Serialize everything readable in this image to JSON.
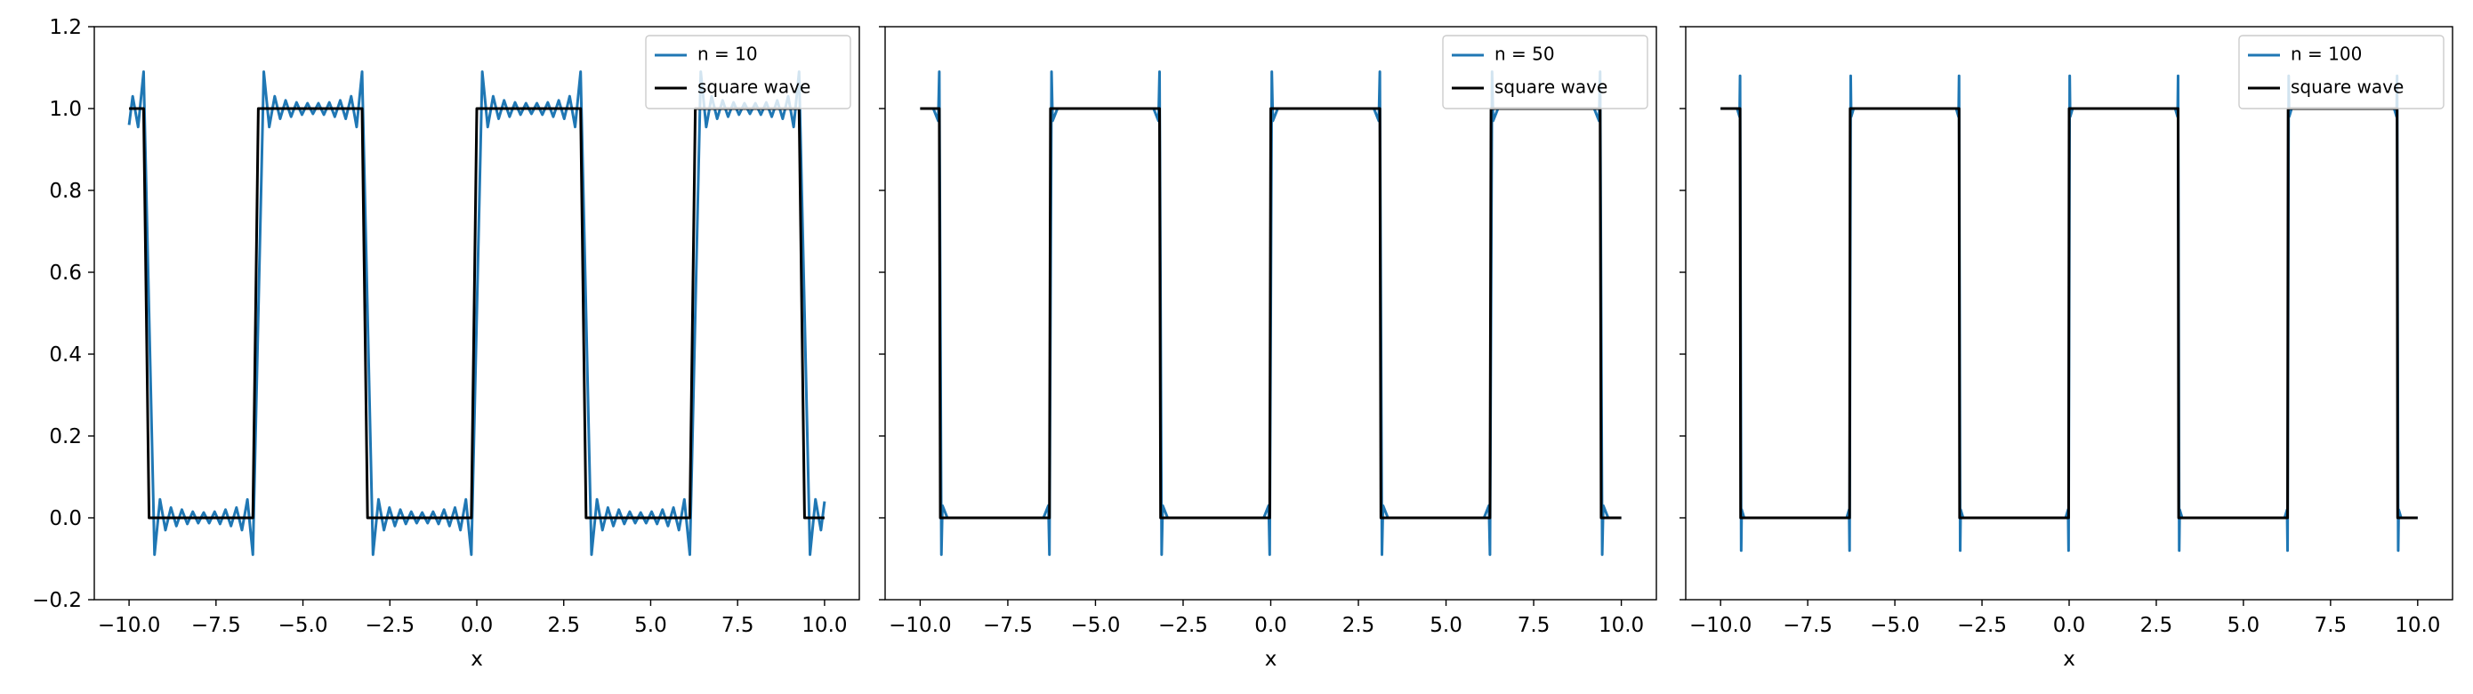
{
  "chart_data": [
    {
      "type": "line",
      "xlabel": "x",
      "x": [
        -10,
        -9.896,
        -9.739,
        -9.582,
        -9.425,
        -9.268,
        -9.111,
        -8.954,
        -8.796,
        -8.639,
        -8.482,
        -8.325,
        -8.168,
        -8.011,
        -7.854,
        -7.697,
        -7.54,
        -7.383,
        -7.226,
        -7.069,
        -6.912,
        -6.754,
        -6.597,
        -6.44,
        -6.283,
        -6.126,
        -5.969,
        -5.812,
        -5.655,
        -5.498,
        -5.341,
        -5.184,
        -5.027,
        -4.869,
        -4.712,
        -4.555,
        -4.398,
        -4.241,
        -4.084,
        -3.927,
        -3.77,
        -3.613,
        -3.456,
        -3.299,
        -3.142,
        -2.985,
        -2.827,
        -2.67,
        -2.513,
        -2.356,
        -2.199,
        -2.042,
        -1.885,
        -1.728,
        -1.571,
        -1.414,
        -1.257,
        -1.1,
        -0.942,
        -0.785,
        -0.628,
        -0.471,
        -0.314,
        -0.157,
        0,
        0.157,
        0.314,
        0.471,
        0.628,
        0.785,
        0.942,
        1.1,
        1.257,
        1.414,
        1.571,
        1.728,
        1.885,
        2.042,
        2.199,
        2.356,
        2.513,
        2.67,
        2.827,
        2.985,
        3.142,
        3.299,
        3.456,
        3.613,
        3.77,
        3.927,
        4.084,
        4.241,
        4.398,
        4.555,
        4.712,
        4.869,
        5.027,
        5.184,
        5.341,
        5.498,
        5.655,
        5.812,
        5.969,
        6.126,
        6.283,
        6.44,
        6.597,
        6.754,
        6.912,
        7.069,
        7.226,
        7.383,
        7.54,
        7.697,
        7.854,
        8.011,
        8.168,
        8.325,
        8.482,
        8.639,
        8.796,
        8.954,
        9.111,
        9.268,
        9.425,
        9.582,
        9.739,
        9.896,
        10
      ],
      "series": [
        {
          "name": "n = 10",
          "color": "#1f77b4",
          "values": [
            0.96,
            1.03,
            0.955,
            1.09,
            0.5,
            -0.09,
            0.045,
            -0.03,
            0.025,
            -0.02,
            0.02,
            -0.015,
            0.015,
            -0.013,
            0.013,
            -0.013,
            0.015,
            -0.015,
            0.02,
            -0.02,
            0.025,
            -0.03,
            0.045,
            -0.09,
            0.5,
            1.09,
            0.955,
            1.03,
            0.975,
            1.02,
            0.98,
            1.015,
            0.985,
            1.013,
            0.987,
            1.013,
            0.985,
            1.015,
            0.98,
            1.02,
            0.975,
            1.03,
            0.955,
            1.09,
            0.5,
            -0.09,
            0.045,
            -0.03,
            0.025,
            -0.02,
            0.02,
            -0.015,
            0.015,
            -0.013,
            0.013,
            -0.013,
            0.015,
            -0.015,
            0.02,
            -0.02,
            0.025,
            -0.03,
            0.045,
            -0.09,
            0.5,
            1.09,
            0.955,
            1.03,
            0.975,
            1.02,
            0.98,
            1.015,
            0.985,
            1.013,
            0.987,
            1.013,
            0.985,
            1.015,
            0.98,
            1.02,
            0.975,
            1.03,
            0.955,
            1.09,
            0.5,
            -0.09,
            0.045,
            -0.03,
            0.025,
            -0.02,
            0.02,
            -0.015,
            0.015,
            -0.013,
            0.013,
            -0.013,
            0.015,
            -0.015,
            0.02,
            -0.02,
            0.025,
            -0.03,
            0.045,
            -0.09,
            0.5,
            1.09,
            0.955,
            1.03,
            0.975,
            1.02,
            0.98,
            1.015,
            0.985,
            1.013,
            0.987,
            1.013,
            0.985,
            1.015,
            0.98,
            1.02,
            0.975,
            1.03,
            0.955,
            1.09,
            0.5,
            -0.09,
            0.045,
            -0.03,
            0.04
          ]
        },
        {
          "name": "square wave",
          "color": "#000000",
          "values": [
            1,
            1,
            1,
            1,
            0,
            0,
            0,
            0,
            0,
            0,
            0,
            0,
            0,
            0,
            0,
            0,
            0,
            0,
            0,
            0,
            0,
            0,
            0,
            0,
            1,
            1,
            1,
            1,
            1,
            1,
            1,
            1,
            1,
            1,
            1,
            1,
            1,
            1,
            1,
            1,
            1,
            1,
            1,
            1,
            0,
            0,
            0,
            0,
            0,
            0,
            0,
            0,
            0,
            0,
            0,
            0,
            0,
            0,
            0,
            0,
            0,
            0,
            0,
            0,
            1,
            1,
            1,
            1,
            1,
            1,
            1,
            1,
            1,
            1,
            1,
            1,
            1,
            1,
            1,
            1,
            1,
            1,
            1,
            1,
            0,
            0,
            0,
            0,
            0,
            0,
            0,
            0,
            0,
            0,
            0,
            0,
            0,
            0,
            0,
            0,
            0,
            0,
            0,
            0,
            1,
            1,
            1,
            1,
            1,
            1,
            1,
            1,
            1,
            1,
            1,
            1,
            1,
            1,
            1,
            1,
            1,
            1,
            1,
            1,
            0,
            0,
            0,
            0,
            0
          ]
        }
      ],
      "xlim": [
        -11,
        11
      ],
      "ylim": [
        -0.2,
        1.2
      ],
      "xticks": [
        {
          "value": -10,
          "label": "−10.0"
        },
        {
          "value": -7.5,
          "label": "−7.5"
        },
        {
          "value": -5,
          "label": "−5.0"
        },
        {
          "value": -2.5,
          "label": "−2.5"
        },
        {
          "value": 0,
          "label": "0.0"
        },
        {
          "value": 2.5,
          "label": "2.5"
        },
        {
          "value": 5,
          "label": "5.0"
        },
        {
          "value": 7.5,
          "label": "7.5"
        },
        {
          "value": 10,
          "label": "10.0"
        }
      ],
      "yticks": [
        {
          "value": -0.2,
          "label": "−0.2"
        },
        {
          "value": 0,
          "label": "0.0"
        },
        0.2,
        0.4,
        0.6,
        0.8,
        {
          "value": 1,
          "label": "1.0"
        },
        1.2
      ],
      "ytick_labels": true,
      "legend": "upper right"
    },
    {
      "type": "line",
      "xlabel": "x",
      "x": [
        -10,
        -9.625,
        -9.485,
        -9.455,
        -9.425,
        -9.395,
        -9.365,
        -9.225,
        -6.483,
        -6.343,
        -6.313,
        -6.283,
        -6.253,
        -6.223,
        -6.083,
        -3.342,
        -3.202,
        -3.172,
        -3.142,
        -3.112,
        -3.082,
        -2.942,
        -0.2,
        -0.06,
        -0.03,
        0,
        0.03,
        0.06,
        0.2,
        2.942,
        3.082,
        3.112,
        3.142,
        3.172,
        3.202,
        3.342,
        6.083,
        6.223,
        6.253,
        6.283,
        6.313,
        6.343,
        6.483,
        9.225,
        9.365,
        9.395,
        9.425,
        9.455,
        9.485,
        9.625,
        10
      ],
      "series": [
        {
          "name": "n = 50",
          "color": "#1f77b4",
          "values": [
            1.0,
            1.0,
            0.97,
            1.09,
            0.5,
            -0.09,
            0.03,
            0.0,
            0.0,
            0.03,
            -0.09,
            0.5,
            1.09,
            0.97,
            1.0,
            1.0,
            0.97,
            1.09,
            0.5,
            -0.09,
            0.03,
            0.0,
            0.0,
            0.03,
            -0.09,
            0.5,
            1.09,
            0.97,
            1.0,
            1.0,
            0.97,
            1.09,
            0.5,
            -0.09,
            0.03,
            0.0,
            0.0,
            0.03,
            -0.09,
            0.5,
            1.09,
            0.97,
            1.0,
            1.0,
            0.97,
            1.09,
            0.5,
            -0.09,
            0.03,
            0.0,
            0.0
          ]
        },
        {
          "name": "square wave",
          "color": "#000000",
          "values": [
            1,
            1,
            1,
            1,
            0,
            0,
            0,
            0,
            0,
            0,
            0,
            1,
            1,
            1,
            1,
            1,
            1,
            1,
            0,
            0,
            0,
            0,
            0,
            0,
            0,
            1,
            1,
            1,
            1,
            1,
            1,
            1,
            0,
            0,
            0,
            0,
            0,
            0,
            0,
            1,
            1,
            1,
            1,
            1,
            1,
            1,
            0,
            0,
            0,
            0,
            0
          ]
        }
      ],
      "xlim": [
        -11,
        11
      ],
      "ylim": [
        -0.2,
        1.2
      ],
      "xticks": [
        {
          "value": -10,
          "label": "−10.0"
        },
        {
          "value": -7.5,
          "label": "−7.5"
        },
        {
          "value": -5,
          "label": "−5.0"
        },
        {
          "value": -2.5,
          "label": "−2.5"
        },
        {
          "value": 0,
          "label": "0.0"
        },
        {
          "value": 2.5,
          "label": "2.5"
        },
        {
          "value": 5,
          "label": "5.0"
        },
        {
          "value": 7.5,
          "label": "7.5"
        },
        {
          "value": 10,
          "label": "10.0"
        }
      ],
      "yticks": [
        -0.2,
        0,
        0.2,
        0.4,
        0.6,
        0.8,
        1,
        1.2
      ],
      "ytick_labels": false,
      "legend": "upper right"
    },
    {
      "type": "line",
      "xlabel": "x",
      "x": [
        -10,
        -9.525,
        -9.455,
        -9.441,
        -9.425,
        -9.409,
        -9.395,
        -9.325,
        -6.383,
        -6.313,
        -6.299,
        -6.283,
        -6.267,
        -6.253,
        -6.183,
        -3.242,
        -3.172,
        -3.158,
        -3.142,
        -3.126,
        -3.112,
        -3.042,
        -0.1,
        -0.03,
        -0.016,
        0,
        0.016,
        0.03,
        0.1,
        3.042,
        3.112,
        3.126,
        3.142,
        3.158,
        3.172,
        3.242,
        6.183,
        6.253,
        6.267,
        6.283,
        6.299,
        6.313,
        6.383,
        9.325,
        9.395,
        9.409,
        9.425,
        9.441,
        9.455,
        9.525,
        10
      ],
      "series": [
        {
          "name": "n = 100",
          "color": "#1f77b4",
          "values": [
            1.0,
            1.0,
            0.98,
            1.08,
            0.5,
            -0.08,
            0.02,
            0.0,
            0.0,
            0.02,
            -0.08,
            0.5,
            1.08,
            0.98,
            1.0,
            1.0,
            0.98,
            1.08,
            0.5,
            -0.08,
            0.02,
            0.0,
            0.0,
            0.02,
            -0.08,
            0.5,
            1.08,
            0.98,
            1.0,
            1.0,
            0.98,
            1.08,
            0.5,
            -0.08,
            0.02,
            0.0,
            0.0,
            0.02,
            -0.08,
            0.5,
            1.08,
            0.98,
            1.0,
            1.0,
            0.98,
            1.08,
            0.5,
            -0.08,
            0.02,
            0.0,
            0.0
          ]
        },
        {
          "name": "square wave",
          "color": "#000000",
          "values": [
            1,
            1,
            1,
            1,
            0,
            0,
            0,
            0,
            0,
            0,
            0,
            1,
            1,
            1,
            1,
            1,
            1,
            1,
            0,
            0,
            0,
            0,
            0,
            0,
            0,
            1,
            1,
            1,
            1,
            1,
            1,
            1,
            0,
            0,
            0,
            0,
            0,
            0,
            0,
            1,
            1,
            1,
            1,
            1,
            1,
            1,
            0,
            0,
            0,
            0,
            0
          ]
        }
      ],
      "xlim": [
        -11,
        11
      ],
      "ylim": [
        -0.2,
        1.2
      ],
      "xticks": [
        {
          "value": -10,
          "label": "−10.0"
        },
        {
          "value": -7.5,
          "label": "−7.5"
        },
        {
          "value": -5,
          "label": "−5.0"
        },
        {
          "value": -2.5,
          "label": "−2.5"
        },
        {
          "value": 0,
          "label": "0.0"
        },
        {
          "value": 2.5,
          "label": "2.5"
        },
        {
          "value": 5,
          "label": "5.0"
        },
        {
          "value": 7.5,
          "label": "7.5"
        },
        {
          "value": 10,
          "label": "10.0"
        }
      ],
      "yticks": [
        -0.2,
        0,
        0.2,
        0.4,
        0.6,
        0.8,
        1,
        1.2
      ],
      "ytick_labels": false,
      "legend": "upper right"
    }
  ]
}
